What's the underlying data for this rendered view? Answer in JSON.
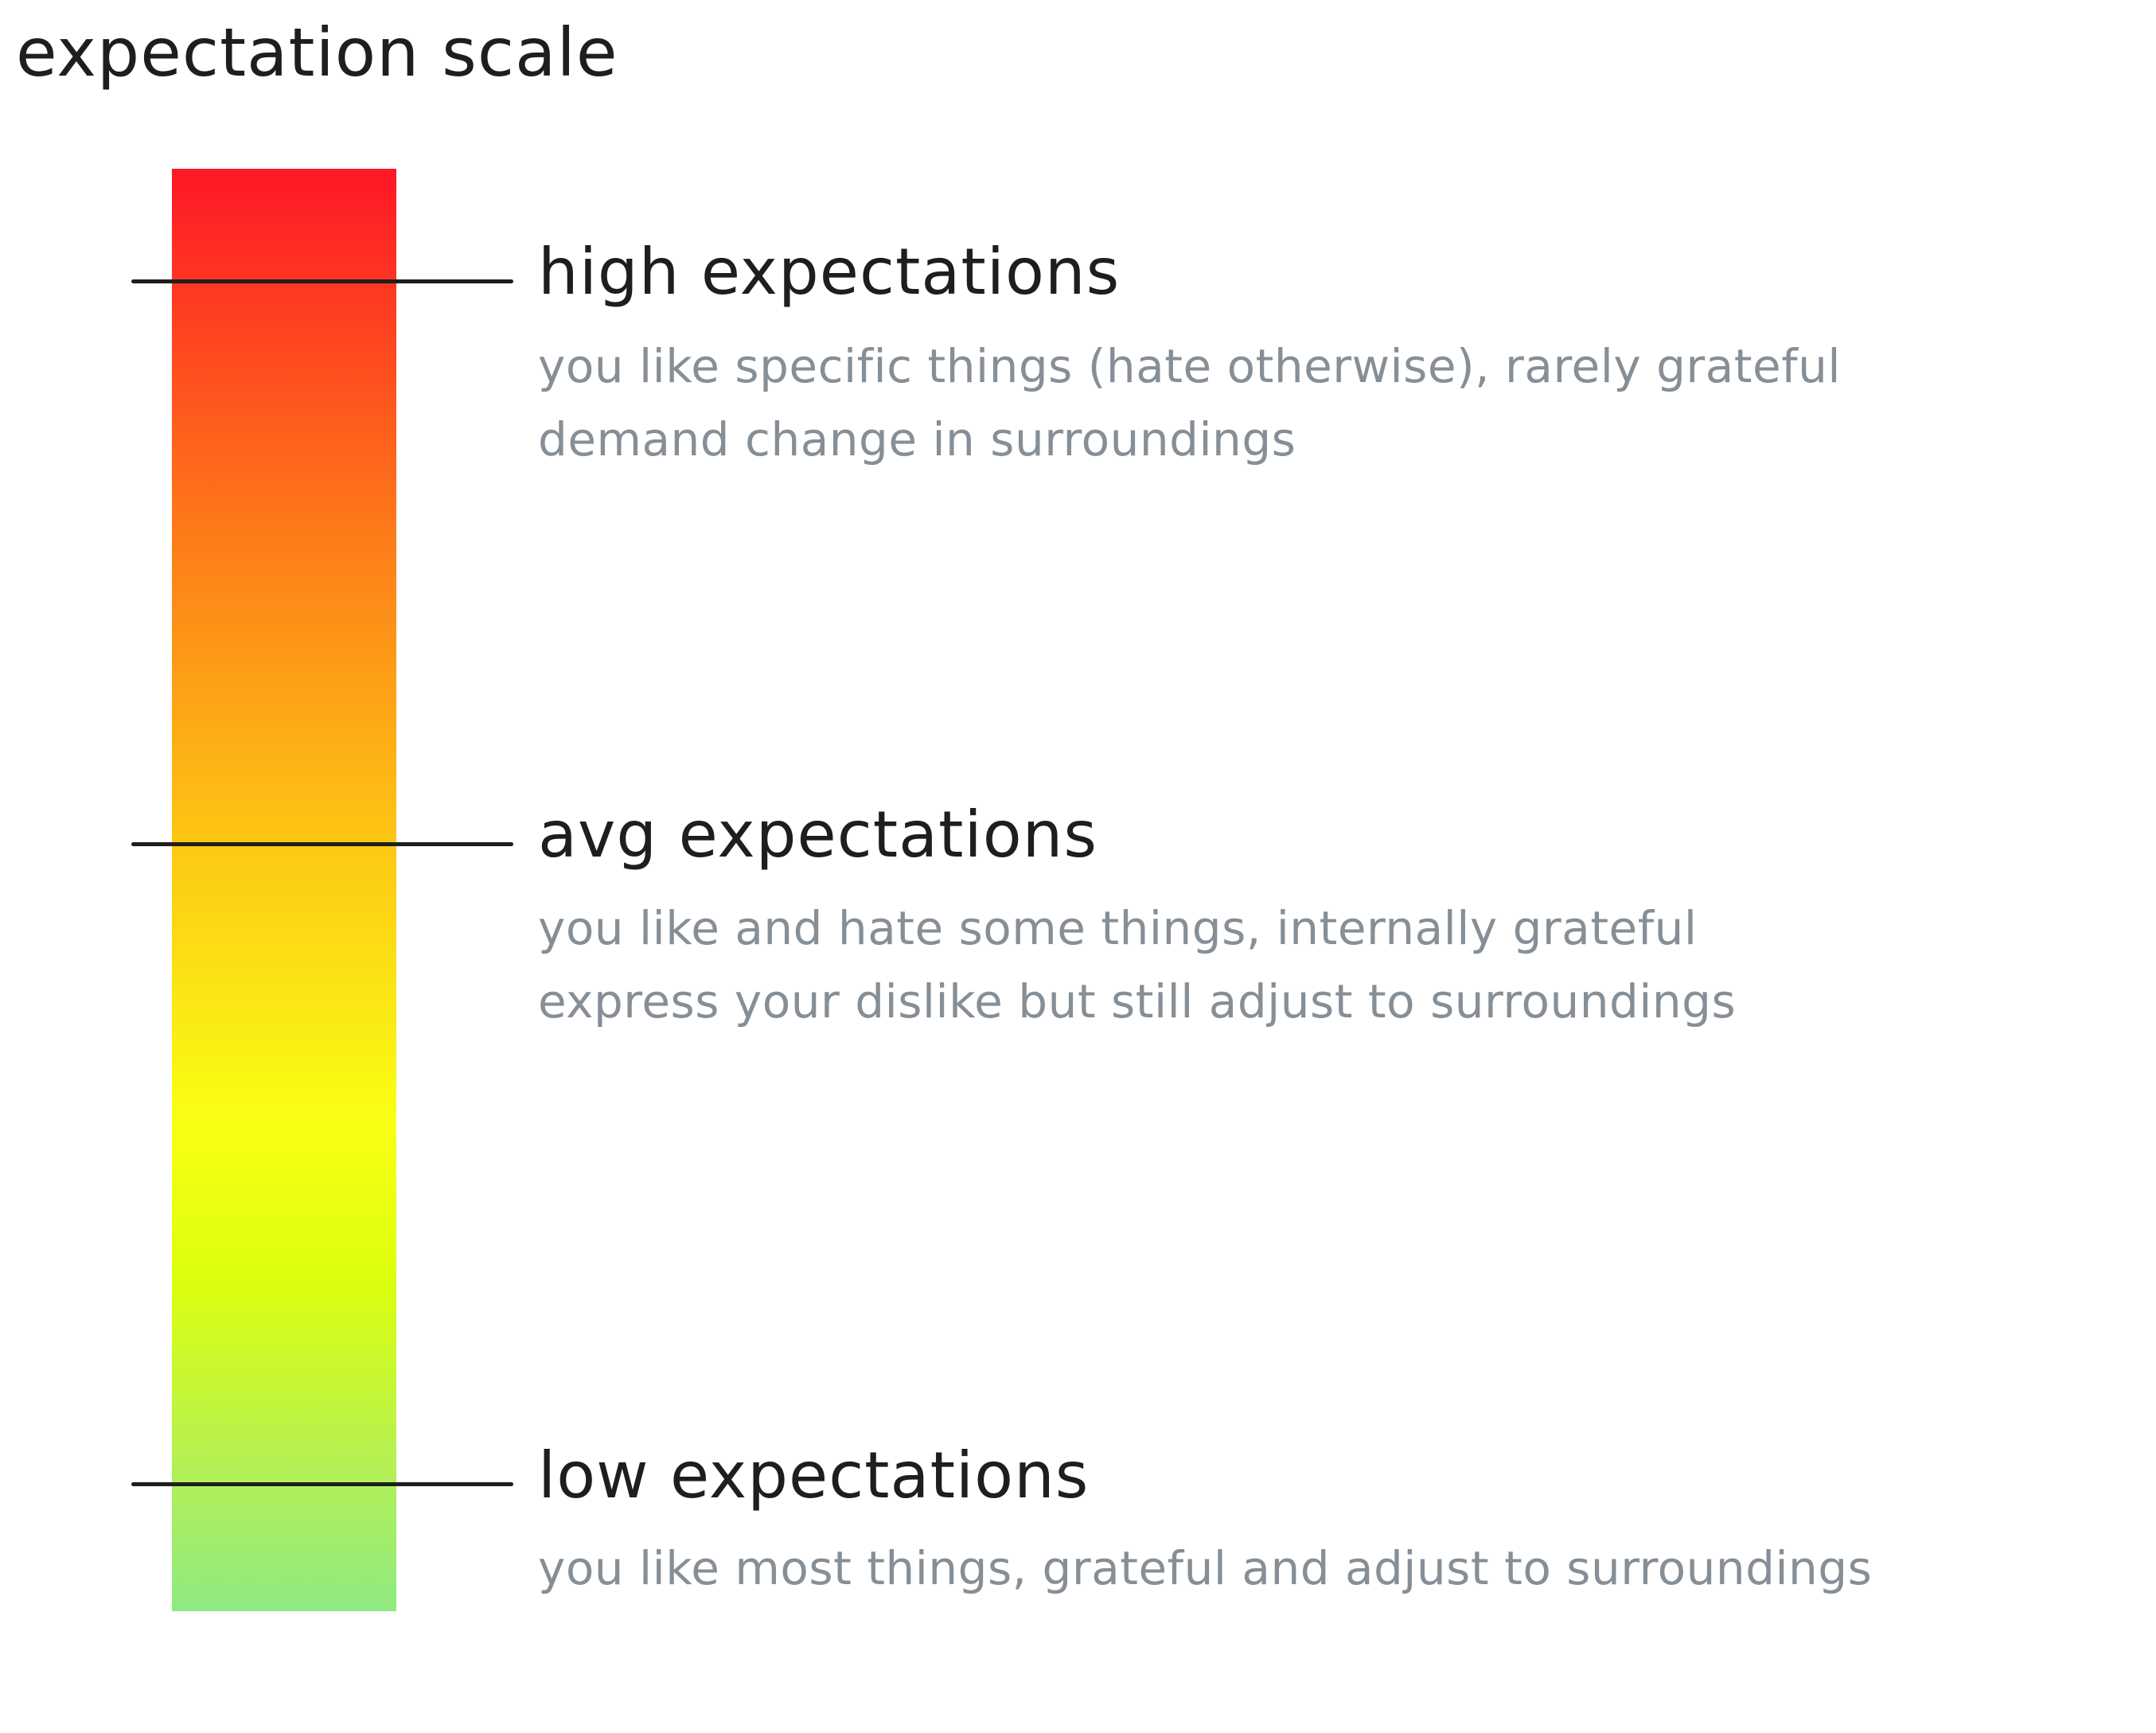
{
  "title": "expectation scale",
  "colors": {
    "scale_top": "#ff1726",
    "scale_upper_mid": "#fd7a19",
    "scale_mid": "#fdc814",
    "scale_lower_mid": "#f9ff14",
    "scale_bottom": "#8fea82",
    "label_text": "#1e1e1e",
    "description_text": "#868e96"
  },
  "levels": [
    {
      "label": "high expectations",
      "lines": [
        "you like specific things (hate otherwise), rarely grateful",
        "demand change in surroundings"
      ]
    },
    {
      "label": "avg expectations",
      "lines": [
        "you like and hate some things, internally grateful",
        "express your dislike but still adjust to surroundings"
      ]
    },
    {
      "label": "low expectations",
      "lines": [
        "you like most things, grateful and adjust to surroundings"
      ]
    }
  ]
}
